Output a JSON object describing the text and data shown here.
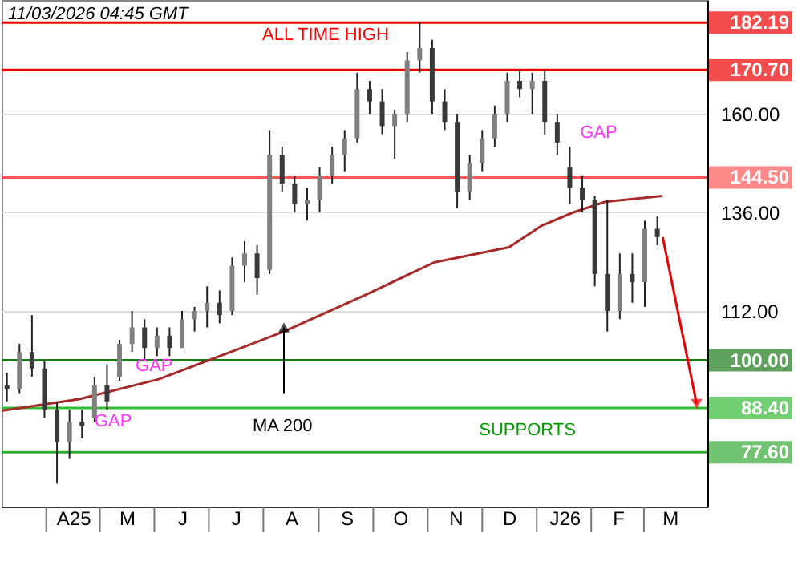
{
  "chart_data": {
    "type": "candlestick",
    "colors": [
      "#3a3a3a",
      "#808080",
      "#3a3a3a",
      "#3a3a3a",
      "#3a3a3a",
      "#808080",
      "#3a3a3a",
      "#808080",
      "#3a3a3a",
      "#808080",
      "#808080",
      "#3a3a3a",
      "#808080",
      "#3a3a3a",
      "#808080",
      "#808080",
      "#808080",
      "#3a3a3a",
      "#808080",
      "#808080",
      "#3a3a3a",
      "#808080",
      "#3a3a3a",
      "#3a3a3a",
      "#808080",
      "#808080",
      "#808080",
      "#808080",
      "#808080",
      "#3a3a3a",
      "#3a3a3a",
      "#808080",
      "#808080",
      "#808080",
      "#3a3a3a",
      "#3a3a3a",
      "#3a3a3a",
      "#808080",
      "#808080",
      "#808080",
      "#808080",
      "#3a3a3a",
      "#808080",
      "#3a3a3a",
      "#3a3a3a",
      "#3a3a3a",
      "#3a3a3a",
      "#3a3a3a",
      "#3a3a3a",
      "#808080",
      "#3a3a3a",
      "#808080",
      "#3a3a3a"
    ],
    "x": [
      "2025-03-10",
      "2025-03-17",
      "2025-03-24",
      "2025-03-31",
      "2025-04-07",
      "2025-04-14",
      "2025-04-21",
      "2025-04-28",
      "2025-05-05",
      "2025-05-12",
      "2025-05-19",
      "2025-05-26",
      "2025-06-02",
      "2025-06-09",
      "2025-06-16",
      "2025-06-23",
      "2025-06-30",
      "2025-07-07",
      "2025-07-14",
      "2025-07-21",
      "2025-07-28",
      "2025-08-04",
      "2025-08-11",
      "2025-08-18",
      "2025-08-25",
      "2025-09-01",
      "2025-09-08",
      "2025-09-15",
      "2025-09-22",
      "2025-09-29",
      "2025-10-06",
      "2025-10-13",
      "2025-10-20",
      "2025-10-27",
      "2025-11-03",
      "2025-11-10",
      "2025-11-17",
      "2025-11-24",
      "2025-12-01",
      "2025-12-08",
      "2025-12-15",
      "2025-12-22",
      "2025-12-29",
      "2026-01-05",
      "2026-01-12",
      "2026-01-19",
      "2026-01-26",
      "2026-02-02",
      "2026-02-09",
      "2026-02-16",
      "2026-02-23",
      "2026-03-02",
      "2026-03-09"
    ],
    "ohlc": [
      [
        94,
        97,
        90,
        93
      ],
      [
        93,
        104,
        92,
        102
      ],
      [
        102,
        111,
        96,
        98
      ],
      [
        98,
        100,
        86,
        88
      ],
      [
        88,
        90,
        70,
        80
      ],
      [
        80,
        88,
        76,
        85
      ],
      [
        85,
        88,
        81,
        84
      ],
      [
        86,
        96,
        85,
        94
      ],
      [
        94,
        99,
        88,
        90
      ],
      [
        96,
        105,
        95,
        104
      ],
      [
        104,
        112,
        102,
        108
      ],
      [
        108,
        110,
        100,
        103
      ],
      [
        103,
        108,
        101,
        106
      ],
      [
        106,
        108,
        101,
        103
      ],
      [
        103,
        112,
        103,
        110
      ],
      [
        110,
        113,
        107,
        112
      ],
      [
        112,
        118,
        108,
        114
      ],
      [
        114,
        117,
        109,
        111
      ],
      [
        112,
        125,
        111,
        123
      ],
      [
        123,
        129,
        119,
        126
      ],
      [
        126,
        128,
        116,
        120
      ],
      [
        122,
        156,
        121,
        150
      ],
      [
        150,
        152,
        141,
        143
      ],
      [
        143,
        145,
        136,
        138
      ],
      [
        138,
        142,
        134,
        139
      ],
      [
        139,
        147,
        136,
        145
      ],
      [
        145,
        152,
        143,
        150
      ],
      [
        150,
        156,
        146,
        154
      ],
      [
        154,
        170,
        153,
        166
      ],
      [
        166,
        168,
        160,
        163
      ],
      [
        163,
        166,
        155,
        157
      ],
      [
        157,
        161,
        149,
        160
      ],
      [
        160,
        175,
        158,
        173
      ],
      [
        173,
        182.2,
        170,
        176
      ],
      [
        176,
        178,
        160,
        163
      ],
      [
        163,
        166,
        156,
        158
      ],
      [
        158,
        160,
        137,
        141
      ],
      [
        141,
        150,
        139,
        148
      ],
      [
        148,
        156,
        146,
        154
      ],
      [
        154,
        162,
        152,
        160
      ],
      [
        160,
        170,
        158,
        168
      ],
      [
        168,
        170.7,
        164,
        166
      ],
      [
        166,
        170,
        160,
        168
      ],
      [
        168,
        170.7,
        155,
        158
      ],
      [
        158,
        160,
        150,
        153
      ],
      [
        147,
        152,
        138,
        142
      ],
      [
        142,
        145,
        136,
        139
      ],
      [
        139,
        140,
        118,
        121
      ],
      [
        121,
        139,
        107,
        112
      ],
      [
        112,
        126,
        110,
        121
      ],
      [
        121,
        126,
        114,
        119
      ],
      [
        119,
        134,
        113,
        132
      ],
      [
        132,
        135,
        128,
        130
      ]
    ],
    "series": [
      {
        "type": "line",
        "color": "#a52a2a",
        "x": [
          "2025-03-07",
          "2025-04-20",
          "2025-06-03",
          "2025-07-18",
          "2025-08-12",
          "2025-09-27",
          "2025-11-04",
          "2025-12-16",
          "2026-01-03",
          "2026-01-21",
          "2026-02-08",
          "2026-03-12"
        ],
        "values": [
          87.7,
          90.6,
          95.4,
          102.8,
          107,
          116,
          123.8,
          127.5,
          132.7,
          136,
          138.6,
          140
        ]
      }
    ],
    "xlim": [
      "2025-03-07",
      "2026-04-06"
    ],
    "xticks": [
      {
        "value": "2025-04-16",
        "label": "A25"
      },
      {
        "value": "2025-05-16",
        "label": "M"
      },
      {
        "value": "2025-06-16",
        "label": "J"
      },
      {
        "value": "2025-07-16",
        "label": "J"
      },
      {
        "value": "2025-08-16",
        "label": "A"
      },
      {
        "value": "2025-09-16",
        "label": "S"
      },
      {
        "value": "2025-10-16",
        "label": "O"
      },
      {
        "value": "2025-11-16",
        "label": "N"
      },
      {
        "value": "2025-12-16",
        "label": "D"
      },
      {
        "value": "2026-01-16",
        "label": "J26"
      },
      {
        "value": "2026-02-15",
        "label": "F"
      },
      {
        "value": "2026-03-16",
        "label": "M"
      }
    ],
    "ylim": [
      64.4,
      187.7
    ],
    "yticks": [
      {
        "value": 112,
        "label": "112.00"
      },
      {
        "value": 136,
        "label": "136.00"
      },
      {
        "value": 160,
        "label": "160.00"
      }
    ],
    "grid": "y",
    "ref_lines": [
      {
        "axis": "y",
        "value": 182.19,
        "label": "182.19",
        "color": "#ee0000"
      },
      {
        "axis": "y",
        "value": 170.7,
        "label": "170.70",
        "color": "#ee0000"
      },
      {
        "axis": "y",
        "value": 144.5,
        "label": "144.50",
        "color": "#ff5555"
      },
      {
        "axis": "y",
        "value": 100,
        "label": "100.00",
        "color": "#1a7a1a"
      },
      {
        "axis": "y",
        "value": 88.4,
        "label": "88.40",
        "color": "#33bb33"
      },
      {
        "axis": "y",
        "value": 77.6,
        "label": "77.60",
        "color": "#33aa33"
      }
    ],
    "annotations": [
      "ALL TIME HIGH",
      "GAP",
      {
        "text": "GAP",
        "x": "2025-05-21",
        "y": 98.5
      },
      {
        "text": "GAP",
        "x": "2025-04-28",
        "y": 85
      },
      "MA 200",
      "SUPPORTS",
      "11/03/2026 04:45 GMT"
    ]
  }
}
